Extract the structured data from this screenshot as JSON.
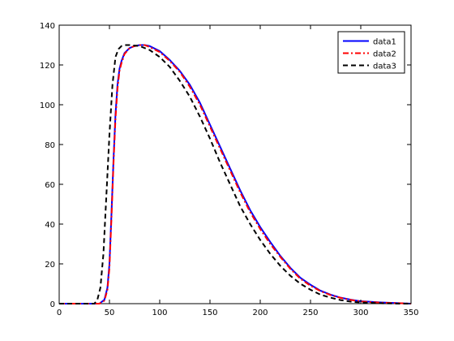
{
  "chart_data": {
    "type": "line",
    "title": "",
    "xlabel": "",
    "ylabel": "",
    "xlim": [
      0,
      350
    ],
    "ylim": [
      0,
      140
    ],
    "x_ticks": [
      0,
      50,
      100,
      150,
      200,
      250,
      300,
      350
    ],
    "y_ticks": [
      0,
      20,
      40,
      60,
      80,
      100,
      120,
      140
    ],
    "x_tick_labels": [
      "0",
      "50",
      "100",
      "150",
      "200",
      "250",
      "300",
      "350"
    ],
    "y_tick_labels": [
      "0",
      "20",
      "40",
      "60",
      "80",
      "100",
      "120",
      "140"
    ],
    "grid": false,
    "legend_position": "top-right",
    "series": [
      {
        "name": "data1",
        "color": "#0000ff",
        "line_style": "solid",
        "x": [
          0,
          40,
          45,
          48,
          50,
          52,
          54,
          56,
          58,
          60,
          62,
          65,
          70,
          75,
          80,
          85,
          90,
          100,
          110,
          120,
          130,
          140,
          150,
          160,
          170,
          180,
          190,
          200,
          210,
          220,
          230,
          240,
          250,
          260,
          270,
          280,
          290,
          300,
          320,
          340,
          350
        ],
        "y": [
          0,
          0,
          2,
          8,
          20,
          45,
          72,
          95,
          110,
          118,
          122,
          126,
          128.5,
          129.5,
          130,
          130,
          129.5,
          127,
          122.5,
          117,
          110,
          101,
          90,
          79,
          68,
          57,
          47,
          38.5,
          31,
          24,
          18,
          13,
          9.5,
          6.5,
          4.5,
          3,
          2,
          1.2,
          0.6,
          0.2,
          0
        ]
      },
      {
        "name": "data2",
        "color": "#ff0000",
        "line_style": "dash-dot",
        "x": [
          0,
          40,
          45,
          48,
          50,
          52,
          54,
          56,
          58,
          60,
          62,
          65,
          70,
          75,
          80,
          85,
          90,
          100,
          110,
          120,
          130,
          140,
          150,
          160,
          170,
          180,
          190,
          200,
          210,
          220,
          230,
          240,
          250,
          260,
          270,
          280,
          290,
          300,
          320,
          340,
          350
        ],
        "y": [
          0,
          0,
          1.5,
          7,
          18,
          43,
          70,
          93,
          108,
          117,
          121,
          125.5,
          128.5,
          129.5,
          130,
          130,
          129,
          126.5,
          122,
          116.5,
          109,
          100,
          89,
          78,
          67,
          56,
          46,
          37.5,
          30,
          23.5,
          17.5,
          12.5,
          9,
          6.3,
          4.3,
          2.9,
          1.9,
          1.1,
          0.5,
          0.2,
          0
        ]
      },
      {
        "name": "data3",
        "color": "#000000",
        "line_style": "dashed",
        "x": [
          0,
          35,
          38,
          41,
          44,
          47,
          50,
          53,
          56,
          59,
          62,
          65,
          70,
          80,
          90,
          100,
          110,
          120,
          130,
          140,
          150,
          160,
          170,
          180,
          190,
          200,
          210,
          220,
          230,
          240,
          250,
          260,
          270,
          280,
          290,
          300,
          320,
          340,
          350
        ],
        "y": [
          0,
          0,
          2,
          8,
          25,
          55,
          85,
          110,
          124,
          128,
          129.5,
          130,
          130,
          129.5,
          127.5,
          124,
          119,
          112,
          104,
          94,
          83,
          71,
          60,
          49,
          40,
          32,
          25,
          19,
          14,
          10,
          7,
          4.5,
          3,
          1.8,
          1,
          0.6,
          0.2,
          0,
          0
        ]
      }
    ]
  }
}
